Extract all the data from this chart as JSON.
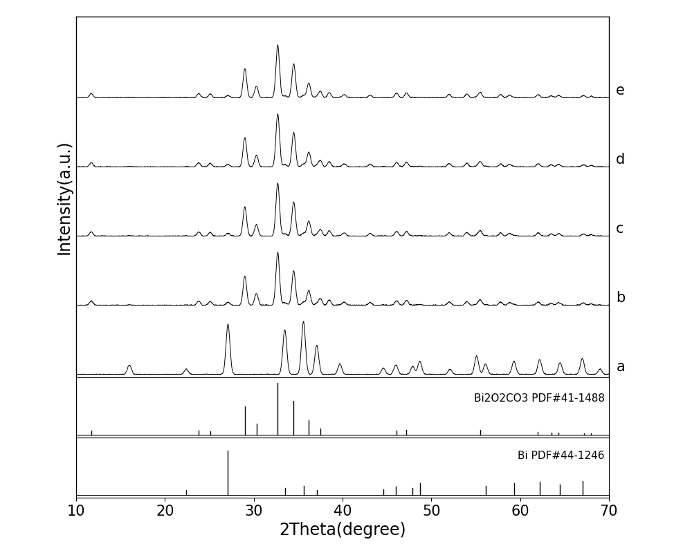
{
  "xlabel": "2Theta(degree)",
  "ylabel": "Intensity(a.u.)",
  "xlim": [
    10,
    70
  ],
  "x_ticks": [
    10,
    20,
    30,
    40,
    50,
    60,
    70
  ],
  "curve_labels": [
    "a",
    "b",
    "c",
    "d",
    "e"
  ],
  "bi2o2co3_peaks": [
    11.7,
    23.8,
    25.1,
    29.0,
    30.3,
    32.7,
    34.5,
    36.2,
    37.5,
    38.5,
    40.2,
    43.1,
    46.1,
    47.2,
    52.0,
    54.0,
    55.5,
    57.8,
    58.8,
    62.0,
    63.5,
    64.3,
    67.2,
    68.0
  ],
  "bi2o2co3_heights": [
    0.08,
    0.08,
    0.07,
    0.55,
    0.22,
    1.0,
    0.65,
    0.28,
    0.12,
    0.1,
    0.06,
    0.05,
    0.08,
    0.09,
    0.06,
    0.07,
    0.1,
    0.06,
    0.05,
    0.05,
    0.04,
    0.04,
    0.03,
    0.03
  ],
  "bi2o2co3_ref_peaks": [
    11.7,
    23.8,
    25.1,
    29.0,
    30.3,
    32.7,
    34.5,
    36.2,
    37.5,
    46.1,
    47.2,
    55.5,
    62.0,
    63.5,
    64.3,
    67.2,
    68.0
  ],
  "bi2o2co3_ref_heights": [
    0.08,
    0.08,
    0.07,
    0.55,
    0.22,
    1.0,
    0.65,
    0.28,
    0.12,
    0.08,
    0.09,
    0.1,
    0.05,
    0.04,
    0.04,
    0.03,
    0.03
  ],
  "bi_peaks": [
    16.0,
    22.4,
    27.1,
    33.5,
    35.6,
    37.1,
    39.7,
    44.6,
    46.0,
    47.9,
    48.7,
    52.1,
    55.1,
    56.1,
    59.3,
    62.2,
    64.5,
    67.0,
    69.0
  ],
  "bi_heights": [
    0.18,
    0.1,
    0.95,
    0.85,
    1.0,
    0.55,
    0.2,
    0.12,
    0.18,
    0.15,
    0.25,
    0.1,
    0.35,
    0.2,
    0.25,
    0.28,
    0.22,
    0.3,
    0.1
  ],
  "bi_ref_peaks": [
    22.4,
    27.1,
    33.5,
    35.6,
    37.1,
    44.6,
    46.0,
    47.9,
    48.7,
    56.1,
    59.3,
    62.2,
    64.5,
    67.0
  ],
  "bi_ref_heights": [
    0.1,
    0.95,
    0.15,
    0.2,
    0.1,
    0.12,
    0.18,
    0.15,
    0.25,
    0.2,
    0.25,
    0.28,
    0.22,
    0.3
  ],
  "line_color": "#000000",
  "background_color": "#ffffff",
  "axis_fontsize": 17,
  "tick_fontsize": 15,
  "label_fontsize": 15,
  "figsize": [
    10,
    8
  ]
}
